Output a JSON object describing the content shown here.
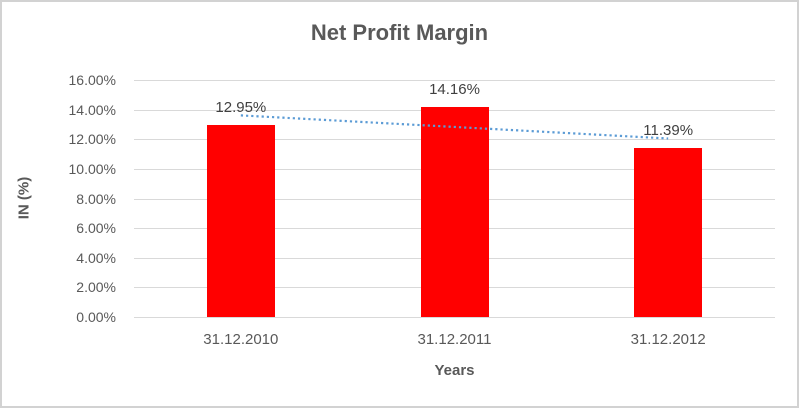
{
  "chart_data": {
    "type": "bar",
    "title": "Net Profit Margin",
    "xlabel": "Years",
    "ylabel": "IN (%)",
    "categories": [
      "31.12.2010",
      "31.12.2011",
      "31.12.2012"
    ],
    "values": [
      12.95,
      14.16,
      11.39
    ],
    "data_labels": [
      "12.95%",
      "14.16%",
      "11.39%"
    ],
    "ylim": [
      0,
      16
    ],
    "ytick_step": 2,
    "ytick_labels": [
      "0.00%",
      "2.00%",
      "4.00%",
      "6.00%",
      "8.00%",
      "10.00%",
      "12.00%",
      "14.00%",
      "16.00%"
    ],
    "grid": true,
    "legend": "none",
    "bar_color": "#ff0000",
    "gridline_color": "#d9d9d9",
    "text_color": "#595959",
    "data_label_color": "#404040",
    "trendline": {
      "type": "linear",
      "style": "dotted",
      "color": "#5b9bd5",
      "endpoint_values": [
        13.61,
        12.05
      ]
    }
  }
}
